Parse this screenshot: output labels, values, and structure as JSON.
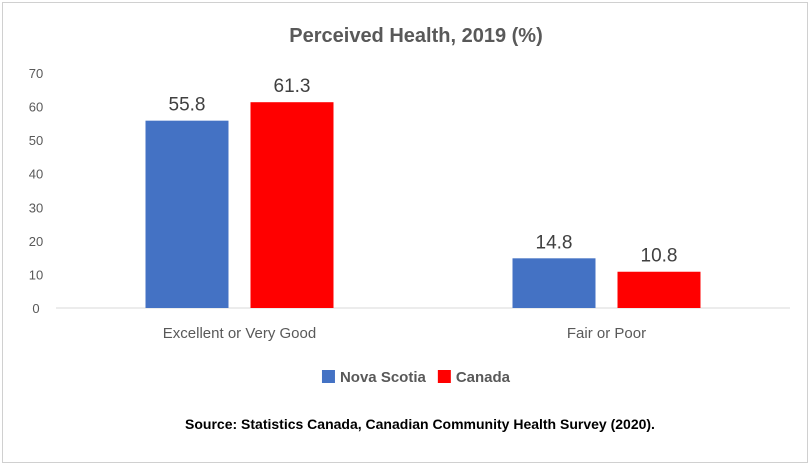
{
  "chart_data": {
    "type": "bar",
    "title": "Perceived Health, 2019 (%)",
    "categories": [
      "Excellent or Very Good",
      "Fair or Poor"
    ],
    "series": [
      {
        "name": "Nova Scotia",
        "values": [
          55.8,
          14.8
        ],
        "color": "#4472c4"
      },
      {
        "name": "Canada",
        "values": [
          61.3,
          10.8
        ],
        "color": "#ff0000"
      }
    ],
    "data_labels": [
      [
        "55.8",
        "14.8"
      ],
      [
        "61.3",
        "10.8"
      ]
    ],
    "ylim": [
      0,
      70
    ],
    "yticks": [
      0,
      10,
      20,
      30,
      40,
      50,
      60,
      70
    ],
    "xlabel": "",
    "ylabel": "",
    "legend_position": "bottom",
    "grid": false
  },
  "source_note": "Source: Statistics Canada, Canadian Community Health Survey (2020)."
}
